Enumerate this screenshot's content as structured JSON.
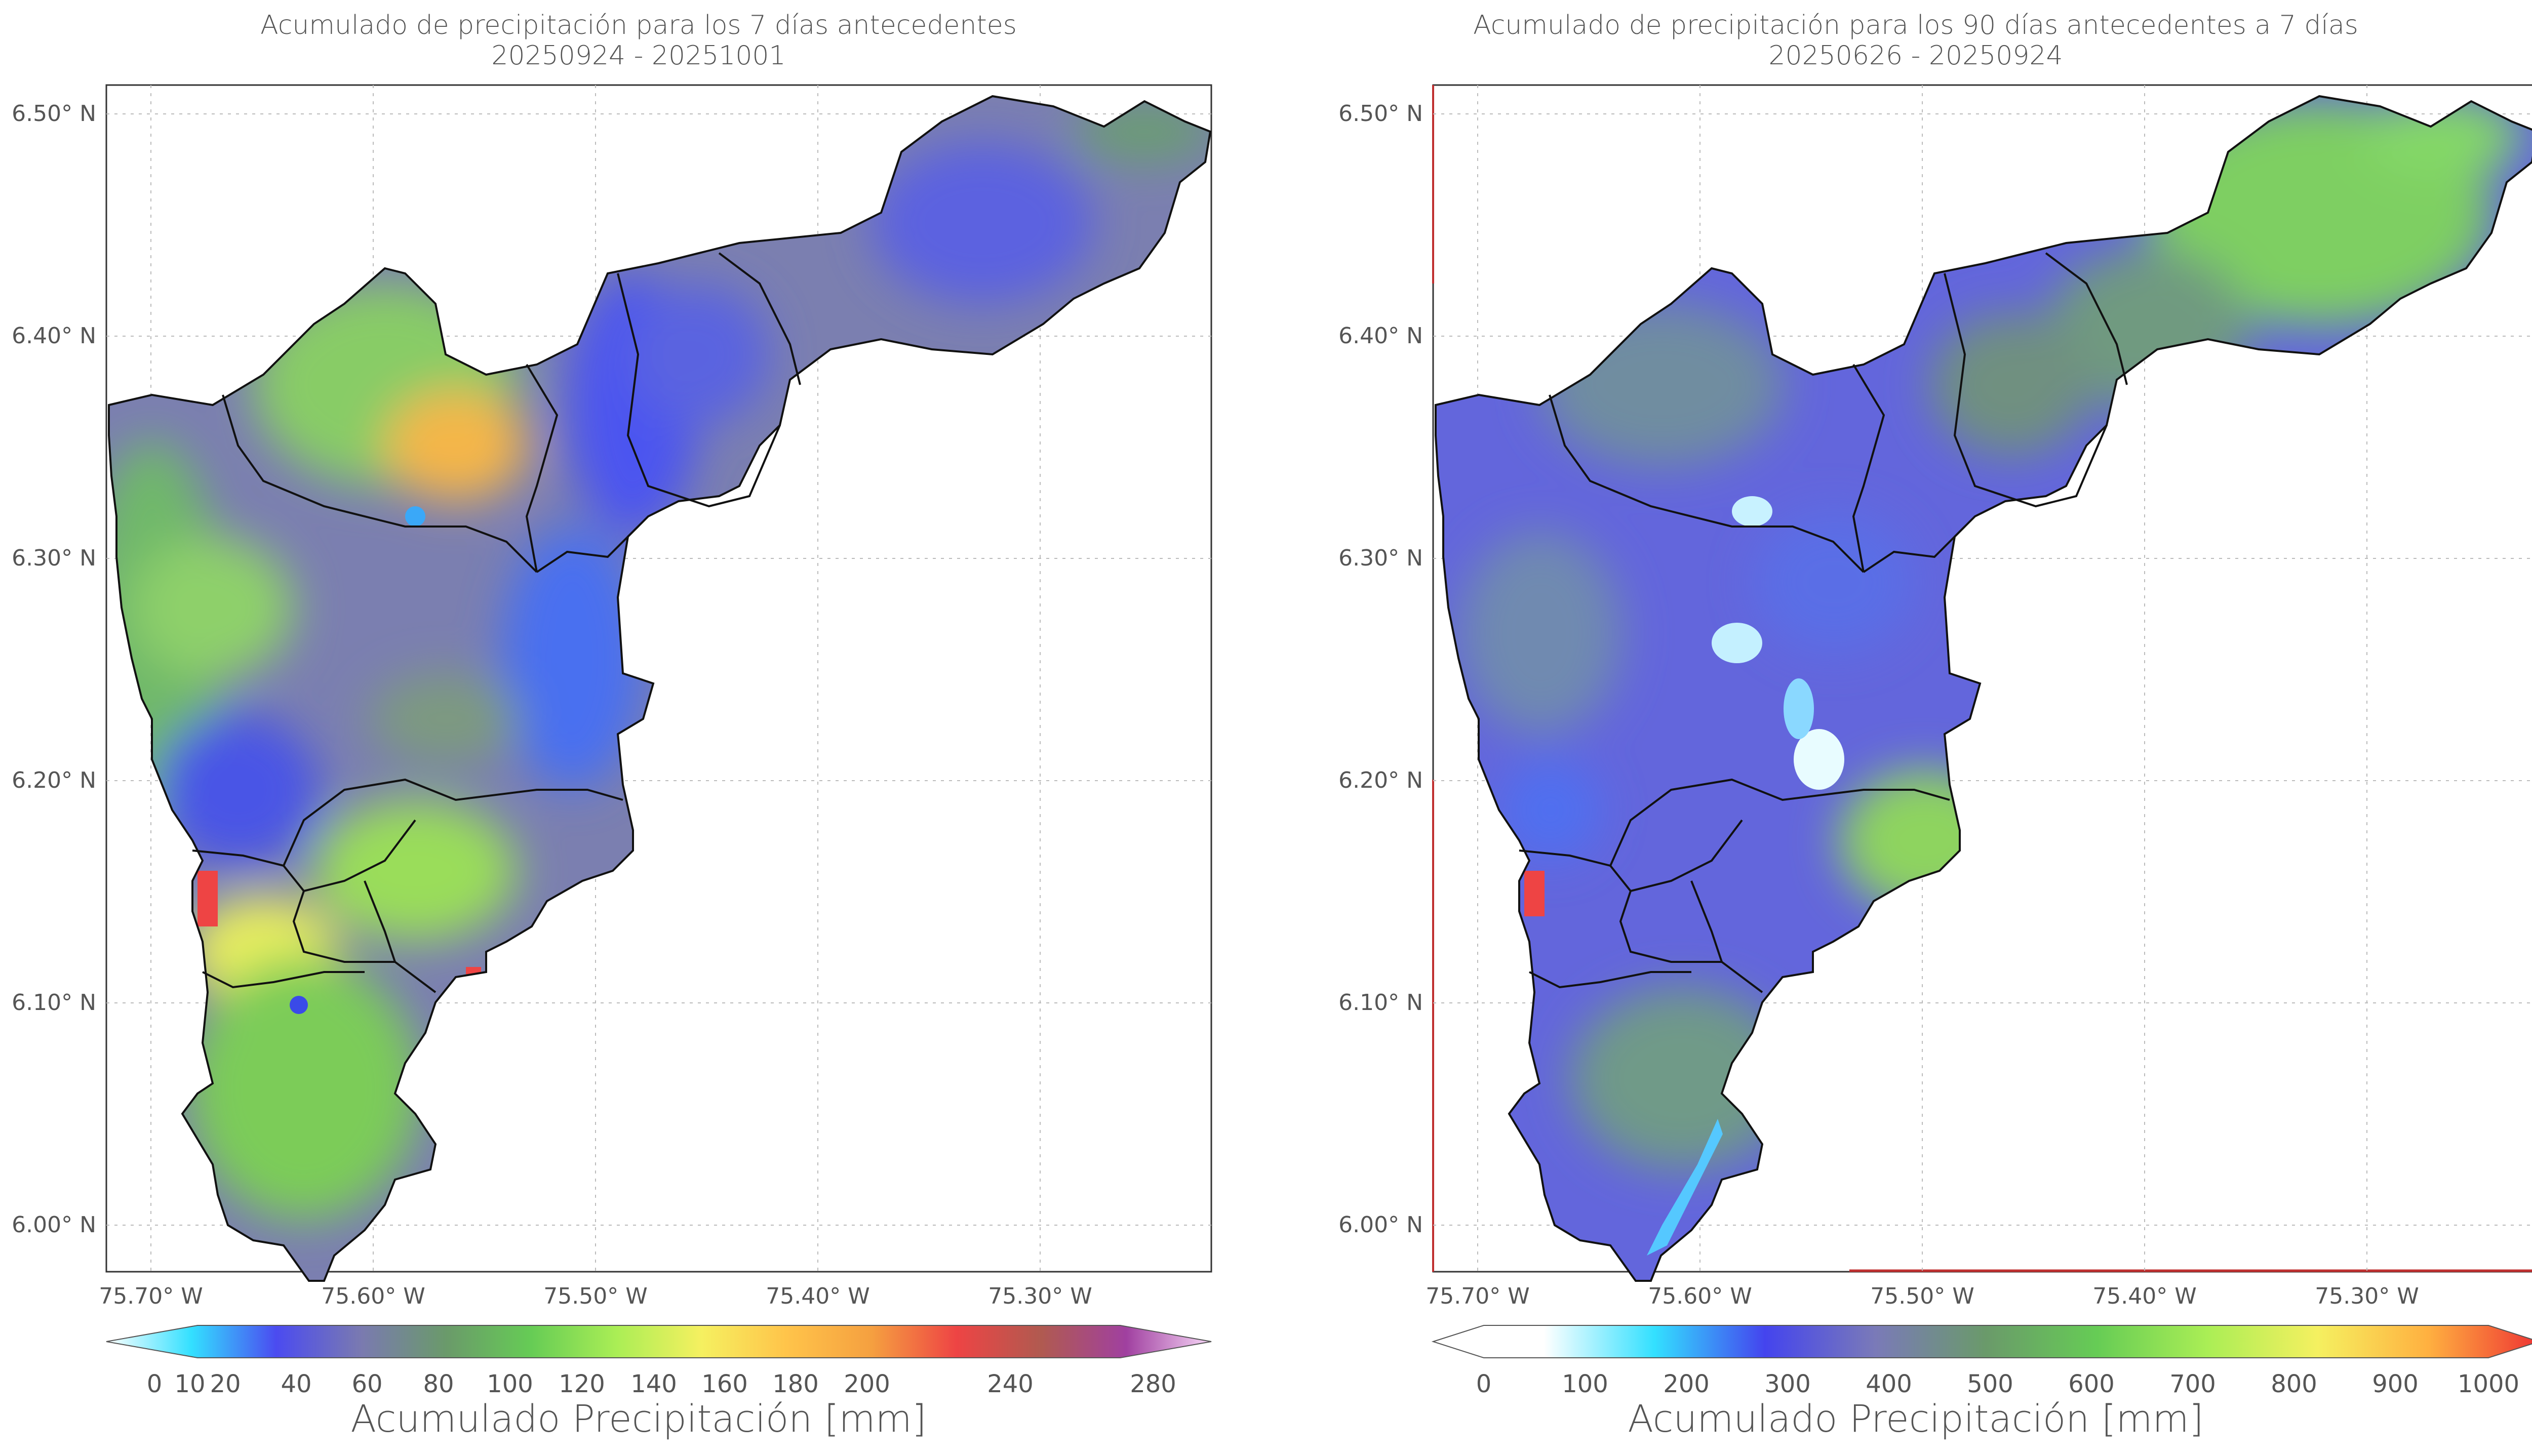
{
  "maps": [
    {
      "title_line1": "Acumulado de precipitación para los 7 días antecedentes",
      "title_line2": "20250924 - 20251001",
      "lat_labels": [
        "6.50° N",
        "6.40° N",
        "6.30° N",
        "6.20° N",
        "6.10° N",
        "6.00° N"
      ],
      "lon_labels": [
        "75.70° W",
        "75.60° W",
        "75.50° W",
        "75.40° W",
        "75.30° W"
      ],
      "colorbar": {
        "ticks": [
          "0",
          "10",
          "20",
          "40",
          "60",
          "80",
          "100",
          "120",
          "140",
          "160",
          "180",
          "200",
          "240",
          "280"
        ],
        "label": "Acumulado Precipitación [mm]",
        "colors": [
          "#ffffff",
          "#33e0ff",
          "#4b4bf0",
          "#7a7ab0",
          "#6a9a6a",
          "#66cc55",
          "#aaee55",
          "#f5f060",
          "#ffc44a",
          "#f5a040",
          "#ee4444",
          "#b05a50",
          "#a040a0",
          "#f8d8f8"
        ]
      }
    },
    {
      "title_line1": "Acumulado de precipitación para los 90 días antecedentes a 7 días",
      "title_line2": "20250626 - 20250924",
      "lat_labels": [
        "6.50° N",
        "6.40° N",
        "6.30° N",
        "6.20° N",
        "6.10° N",
        "6.00° N"
      ],
      "lon_labels": [
        "75.70° W",
        "75.60° W",
        "75.50° W",
        "75.40° W",
        "75.30° W"
      ],
      "colorbar": {
        "ticks": [
          "0",
          "100",
          "200",
          "300",
          "400",
          "500",
          "600",
          "700",
          "800",
          "900",
          "1000"
        ],
        "label": "Acumulado Precipitación [mm]",
        "colors": [
          "#ffffff",
          "#ffffff",
          "#33e0ff",
          "#4444ee",
          "#7a7ab8",
          "#6a9a6a",
          "#66cc55",
          "#aaee55",
          "#f5f060",
          "#ffb040",
          "#ee3333"
        ]
      }
    }
  ]
}
